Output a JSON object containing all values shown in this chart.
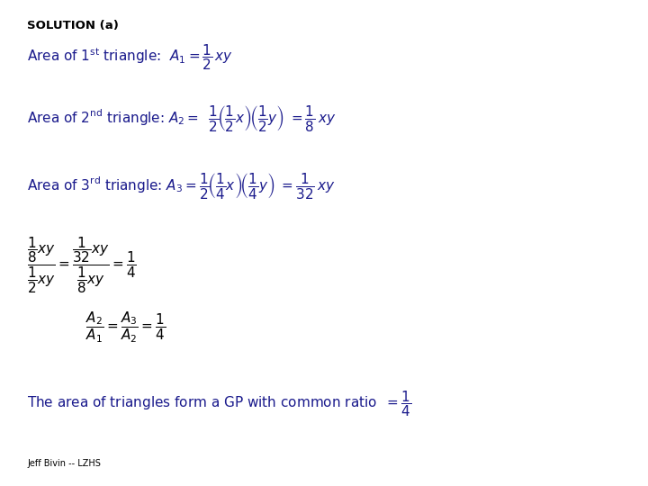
{
  "background_color": "#ffffff",
  "text_color_black": "#000000",
  "text_color_blue": "#1a1a8c",
  "title": "SOLUTION (a)",
  "footer": "Jeff Bivin -- LZHS",
  "fig_width": 7.2,
  "fig_height": 5.4,
  "dpi": 100
}
